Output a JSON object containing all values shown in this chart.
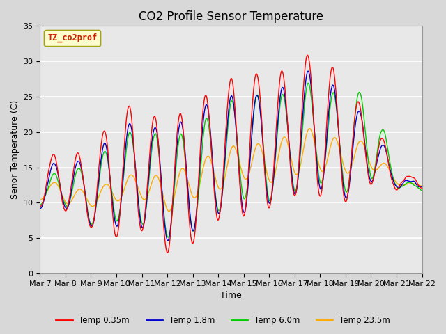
{
  "title": "CO2 Profile Sensor Temperature",
  "xlabel": "Time",
  "ylabel": "Senor Temperature (C)",
  "ylim": [
    0,
    35
  ],
  "yticks": [
    0,
    5,
    10,
    15,
    20,
    25,
    30,
    35
  ],
  "fig_bg_color": "#d8d8d8",
  "plot_bg_color": "#e8e8e8",
  "grid_color": "white",
  "legend_label": "TZ_co2prof",
  "series_labels": [
    "Temp 0.35m",
    "Temp 1.8m",
    "Temp 6.0m",
    "Temp 23.5m"
  ],
  "series_colors": [
    "#ff0000",
    "#0000cc",
    "#00cc00",
    "#ffaa00"
  ],
  "xtick_days": [
    7,
    8,
    9,
    10,
    11,
    12,
    13,
    14,
    15,
    16,
    17,
    18,
    19,
    20,
    21,
    22
  ],
  "title_fontsize": 12,
  "axis_fontsize": 9,
  "tick_fontsize": 8
}
